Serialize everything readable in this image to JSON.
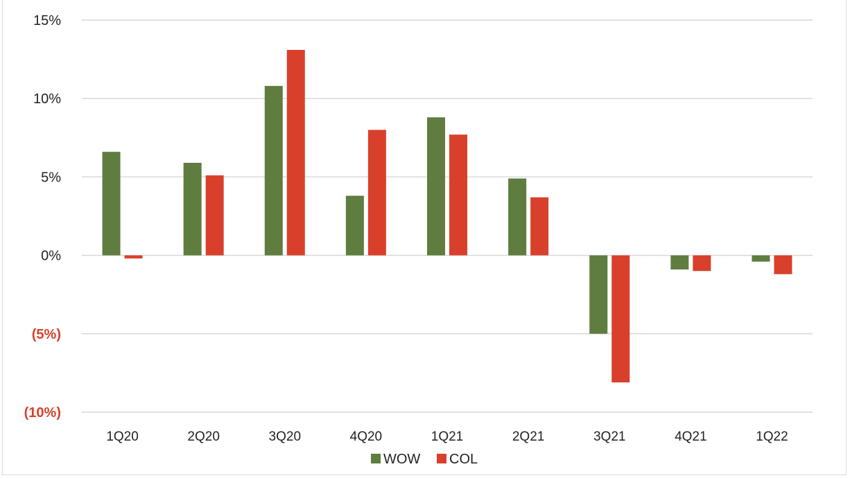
{
  "chart_data": {
    "type": "bar",
    "categories": [
      "1Q20",
      "2Q20",
      "3Q20",
      "4Q20",
      "1Q21",
      "2Q21",
      "3Q21",
      "4Q21",
      "1Q22"
    ],
    "series": [
      {
        "name": "WOW",
        "color": "#5e7d3f",
        "values": [
          6.6,
          5.9,
          10.8,
          3.8,
          8.8,
          4.9,
          -5.0,
          -0.9,
          -0.4
        ]
      },
      {
        "name": "COL",
        "color": "#d9402b",
        "values": [
          -0.2,
          5.1,
          13.1,
          8.0,
          7.7,
          3.7,
          -8.1,
          -1.0,
          -1.2
        ]
      }
    ],
    "ylim": [
      -10,
      15
    ],
    "yticks": [
      15,
      10,
      5,
      0,
      -5,
      -10
    ],
    "ytick_labels": [
      "15%",
      "10%",
      "5%",
      "0%",
      "(5%)",
      "(10%)"
    ],
    "negative_tick_color": "#d9402b",
    "grid": true,
    "legend_position": "bottom-center",
    "title": "",
    "xlabel": "",
    "ylabel": ""
  }
}
